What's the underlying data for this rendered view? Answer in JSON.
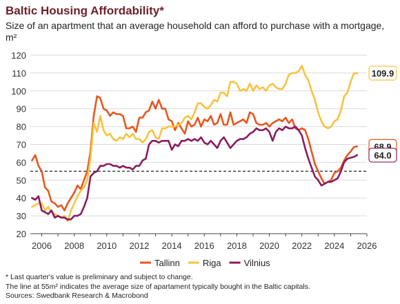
{
  "title": "Baltic Housing Affordability*",
  "subtitle": "Size of an apartment that an average household can afford to purchase with a mortgage, m²",
  "notes": [
    "* Last quarter's value is preliminary and subject to change.",
    "The line at 55m² indicates the average size of apartament typically bought in the Baltic capitals.",
    "Sources: Swedbank Research & Macrobond"
  ],
  "chart_data": {
    "type": "line",
    "title": "Baltic Housing Affordability*",
    "xlim": [
      2005.3,
      2026.0
    ],
    "ylim": [
      20,
      120
    ],
    "x_ticks": [
      2006,
      2008,
      2010,
      2012,
      2014,
      2016,
      2018,
      2020,
      2022,
      2024,
      2026
    ],
    "y_ticks": [
      20,
      30,
      40,
      50,
      60,
      70,
      80,
      90,
      100,
      110,
      120
    ],
    "grid": "horizontal",
    "legend_position": "bottom",
    "reference_line": {
      "y": 55,
      "style": "dashed"
    },
    "series": [
      {
        "name": "Tallinn",
        "color": "#e8561e",
        "end_label": "68.9",
        "points": [
          [
            2005.4,
            61
          ],
          [
            2005.6,
            64
          ],
          [
            2005.8,
            58
          ],
          [
            2006.0,
            55
          ],
          [
            2006.2,
            46
          ],
          [
            2006.4,
            44
          ],
          [
            2006.6,
            38
          ],
          [
            2006.8,
            37
          ],
          [
            2007.0,
            35
          ],
          [
            2007.2,
            36
          ],
          [
            2007.4,
            33
          ],
          [
            2007.6,
            37
          ],
          [
            2007.8,
            40
          ],
          [
            2008.0,
            43
          ],
          [
            2008.2,
            47
          ],
          [
            2008.4,
            45
          ],
          [
            2008.6,
            50
          ],
          [
            2008.8,
            55
          ],
          [
            2009.0,
            66
          ],
          [
            2009.2,
            86
          ],
          [
            2009.4,
            97
          ],
          [
            2009.6,
            96
          ],
          [
            2009.8,
            90
          ],
          [
            2010.0,
            89
          ],
          [
            2010.2,
            86
          ],
          [
            2010.4,
            88
          ],
          [
            2010.6,
            87
          ],
          [
            2010.8,
            87
          ],
          [
            2011.0,
            86
          ],
          [
            2011.2,
            79
          ],
          [
            2011.4,
            79
          ],
          [
            2011.6,
            80
          ],
          [
            2011.8,
            77
          ],
          [
            2012.0,
            85
          ],
          [
            2012.2,
            85
          ],
          [
            2012.4,
            88
          ],
          [
            2012.6,
            89
          ],
          [
            2012.8,
            94
          ],
          [
            2013.0,
            90
          ],
          [
            2013.2,
            95
          ],
          [
            2013.4,
            90
          ],
          [
            2013.6,
            90
          ],
          [
            2013.8,
            84
          ],
          [
            2014.0,
            83
          ],
          [
            2014.2,
            78
          ],
          [
            2014.4,
            82
          ],
          [
            2014.6,
            79
          ],
          [
            2014.8,
            76
          ],
          [
            2015.0,
            83
          ],
          [
            2015.2,
            80
          ],
          [
            2015.4,
            81
          ],
          [
            2015.6,
            85
          ],
          [
            2015.8,
            80
          ],
          [
            2016.0,
            84
          ],
          [
            2016.2,
            83
          ],
          [
            2016.4,
            86
          ],
          [
            2016.6,
            81
          ],
          [
            2016.8,
            82
          ],
          [
            2017.0,
            87
          ],
          [
            2017.2,
            81
          ],
          [
            2017.4,
            81
          ],
          [
            2017.6,
            88
          ],
          [
            2017.8,
            81
          ],
          [
            2018.0,
            82
          ],
          [
            2018.2,
            83
          ],
          [
            2018.4,
            84
          ],
          [
            2018.6,
            82
          ],
          [
            2018.8,
            88
          ],
          [
            2019.0,
            87
          ],
          [
            2019.2,
            82
          ],
          [
            2019.4,
            81
          ],
          [
            2019.6,
            81
          ],
          [
            2019.8,
            82
          ],
          [
            2020.0,
            80
          ],
          [
            2020.2,
            82
          ],
          [
            2020.4,
            83
          ],
          [
            2020.6,
            84
          ],
          [
            2020.8,
            83
          ],
          [
            2021.0,
            85
          ],
          [
            2021.2,
            82
          ],
          [
            2021.4,
            84
          ],
          [
            2021.6,
            79
          ],
          [
            2021.8,
            78
          ],
          [
            2022.0,
            79
          ],
          [
            2022.2,
            78
          ],
          [
            2022.4,
            73
          ],
          [
            2022.6,
            66
          ],
          [
            2022.8,
            59
          ],
          [
            2023.0,
            55
          ],
          [
            2023.2,
            51
          ],
          [
            2023.4,
            48
          ],
          [
            2023.6,
            49
          ],
          [
            2023.8,
            50
          ],
          [
            2024.0,
            54
          ],
          [
            2024.2,
            55
          ],
          [
            2024.4,
            57
          ],
          [
            2024.6,
            61
          ],
          [
            2024.8,
            64
          ],
          [
            2025.0,
            66
          ],
          [
            2025.2,
            68.5
          ],
          [
            2025.4,
            68.9
          ]
        ]
      },
      {
        "name": "Riga",
        "color": "#f7c33f",
        "end_label": "109.9",
        "points": [
          [
            2005.4,
            35
          ],
          [
            2005.6,
            36
          ],
          [
            2005.8,
            37
          ],
          [
            2006.0,
            37
          ],
          [
            2006.2,
            33
          ],
          [
            2006.4,
            35
          ],
          [
            2006.6,
            32
          ],
          [
            2006.8,
            31
          ],
          [
            2007.0,
            30
          ],
          [
            2007.2,
            29
          ],
          [
            2007.4,
            30
          ],
          [
            2007.6,
            27
          ],
          [
            2007.8,
            33
          ],
          [
            2008.0,
            37
          ],
          [
            2008.2,
            41
          ],
          [
            2008.4,
            44
          ],
          [
            2008.6,
            46
          ],
          [
            2008.8,
            50
          ],
          [
            2009.0,
            62
          ],
          [
            2009.2,
            82
          ],
          [
            2009.4,
            77
          ],
          [
            2009.6,
            86
          ],
          [
            2009.8,
            78
          ],
          [
            2010.0,
            75
          ],
          [
            2010.2,
            76
          ],
          [
            2010.4,
            73
          ],
          [
            2010.6,
            72
          ],
          [
            2010.8,
            74
          ],
          [
            2011.0,
            73
          ],
          [
            2011.2,
            76
          ],
          [
            2011.4,
            74
          ],
          [
            2011.6,
            76
          ],
          [
            2011.8,
            73
          ],
          [
            2012.0,
            73
          ],
          [
            2012.2,
            71
          ],
          [
            2012.4,
            73
          ],
          [
            2012.6,
            77
          ],
          [
            2012.8,
            78
          ],
          [
            2013.0,
            74
          ],
          [
            2013.2,
            73
          ],
          [
            2013.4,
            79
          ],
          [
            2013.6,
            79
          ],
          [
            2013.8,
            80
          ],
          [
            2014.0,
            80
          ],
          [
            2014.2,
            80
          ],
          [
            2014.4,
            81
          ],
          [
            2014.6,
            82
          ],
          [
            2014.8,
            85
          ],
          [
            2015.0,
            86
          ],
          [
            2015.2,
            84
          ],
          [
            2015.4,
            88
          ],
          [
            2015.6,
            93
          ],
          [
            2015.8,
            93
          ],
          [
            2016.0,
            91
          ],
          [
            2016.2,
            90
          ],
          [
            2016.4,
            92
          ],
          [
            2016.6,
            95
          ],
          [
            2016.8,
            94
          ],
          [
            2017.0,
            99
          ],
          [
            2017.2,
            99
          ],
          [
            2017.4,
            97
          ],
          [
            2017.6,
            105
          ],
          [
            2017.8,
            105
          ],
          [
            2018.0,
            104
          ],
          [
            2018.2,
            100
          ],
          [
            2018.4,
            101
          ],
          [
            2018.6,
            100
          ],
          [
            2018.8,
            104
          ],
          [
            2019.0,
            100
          ],
          [
            2019.2,
            103
          ],
          [
            2019.4,
            101
          ],
          [
            2019.6,
            102
          ],
          [
            2019.8,
            100
          ],
          [
            2020.0,
            103
          ],
          [
            2020.2,
            104
          ],
          [
            2020.4,
            102
          ],
          [
            2020.6,
            101
          ],
          [
            2020.8,
            101
          ],
          [
            2021.0,
            104
          ],
          [
            2021.2,
            109
          ],
          [
            2021.4,
            110
          ],
          [
            2021.6,
            110
          ],
          [
            2021.8,
            111
          ],
          [
            2022.0,
            114
          ],
          [
            2022.2,
            109
          ],
          [
            2022.4,
            106
          ],
          [
            2022.6,
            100
          ],
          [
            2022.8,
            95
          ],
          [
            2023.0,
            88
          ],
          [
            2023.2,
            83
          ],
          [
            2023.4,
            80
          ],
          [
            2023.6,
            79
          ],
          [
            2023.8,
            80
          ],
          [
            2024.0,
            83
          ],
          [
            2024.2,
            84
          ],
          [
            2024.4,
            89
          ],
          [
            2024.6,
            97
          ],
          [
            2024.8,
            99
          ],
          [
            2025.0,
            105
          ],
          [
            2025.2,
            109.9
          ],
          [
            2025.4,
            109.9
          ]
        ]
      },
      {
        "name": "Vilnius",
        "color": "#8a1b5e",
        "end_label": "64.0",
        "points": [
          [
            2005.4,
            40
          ],
          [
            2005.6,
            39
          ],
          [
            2005.8,
            41
          ],
          [
            2006.0,
            33
          ],
          [
            2006.2,
            32
          ],
          [
            2006.4,
            31
          ],
          [
            2006.6,
            33
          ],
          [
            2006.8,
            29
          ],
          [
            2007.0,
            30
          ],
          [
            2007.2,
            29
          ],
          [
            2007.4,
            29
          ],
          [
            2007.6,
            28
          ],
          [
            2007.8,
            28
          ],
          [
            2008.0,
            30
          ],
          [
            2008.2,
            30
          ],
          [
            2008.4,
            31
          ],
          [
            2008.6,
            35
          ],
          [
            2008.8,
            40
          ],
          [
            2009.0,
            52
          ],
          [
            2009.2,
            54
          ],
          [
            2009.4,
            55
          ],
          [
            2009.6,
            58
          ],
          [
            2009.8,
            58
          ],
          [
            2010.0,
            59
          ],
          [
            2010.2,
            59
          ],
          [
            2010.4,
            58
          ],
          [
            2010.6,
            58
          ],
          [
            2010.8,
            57
          ],
          [
            2011.0,
            58
          ],
          [
            2011.2,
            57
          ],
          [
            2011.4,
            57
          ],
          [
            2011.6,
            56
          ],
          [
            2011.8,
            58
          ],
          [
            2012.0,
            58
          ],
          [
            2012.2,
            61
          ],
          [
            2012.4,
            62
          ],
          [
            2012.6,
            70
          ],
          [
            2012.8,
            72
          ],
          [
            2013.0,
            72
          ],
          [
            2013.2,
            71
          ],
          [
            2013.4,
            72
          ],
          [
            2013.6,
            72
          ],
          [
            2013.8,
            72
          ],
          [
            2014.0,
            67
          ],
          [
            2014.2,
            70
          ],
          [
            2014.4,
            69
          ],
          [
            2014.6,
            72
          ],
          [
            2014.8,
            72
          ],
          [
            2015.0,
            73
          ],
          [
            2015.2,
            72
          ],
          [
            2015.4,
            73
          ],
          [
            2015.6,
            72
          ],
          [
            2015.8,
            74
          ],
          [
            2016.0,
            71
          ],
          [
            2016.2,
            70
          ],
          [
            2016.4,
            72
          ],
          [
            2016.6,
            70
          ],
          [
            2016.8,
            68
          ],
          [
            2017.0,
            72
          ],
          [
            2017.2,
            74
          ],
          [
            2017.4,
            71
          ],
          [
            2017.6,
            68
          ],
          [
            2017.8,
            70
          ],
          [
            2018.0,
            72
          ],
          [
            2018.2,
            73
          ],
          [
            2018.4,
            73
          ],
          [
            2018.6,
            74
          ],
          [
            2018.8,
            76
          ],
          [
            2019.0,
            77
          ],
          [
            2019.2,
            79
          ],
          [
            2019.4,
            78
          ],
          [
            2019.6,
            78
          ],
          [
            2019.8,
            79
          ],
          [
            2020.0,
            77
          ],
          [
            2020.2,
            72
          ],
          [
            2020.4,
            77
          ],
          [
            2020.6,
            79
          ],
          [
            2020.8,
            78
          ],
          [
            2021.0,
            80
          ],
          [
            2021.2,
            79
          ],
          [
            2021.4,
            79
          ],
          [
            2021.6,
            80
          ],
          [
            2021.8,
            78
          ],
          [
            2022.0,
            75
          ],
          [
            2022.2,
            68
          ],
          [
            2022.4,
            62
          ],
          [
            2022.6,
            57
          ],
          [
            2022.8,
            52
          ],
          [
            2023.0,
            50
          ],
          [
            2023.2,
            47
          ],
          [
            2023.4,
            48
          ],
          [
            2023.6,
            49
          ],
          [
            2023.8,
            49
          ],
          [
            2024.0,
            50
          ],
          [
            2024.2,
            51
          ],
          [
            2024.4,
            55
          ],
          [
            2024.6,
            60
          ],
          [
            2024.8,
            62
          ],
          [
            2025.0,
            62.5
          ],
          [
            2025.2,
            63
          ],
          [
            2025.4,
            64.0
          ]
        ]
      }
    ]
  }
}
